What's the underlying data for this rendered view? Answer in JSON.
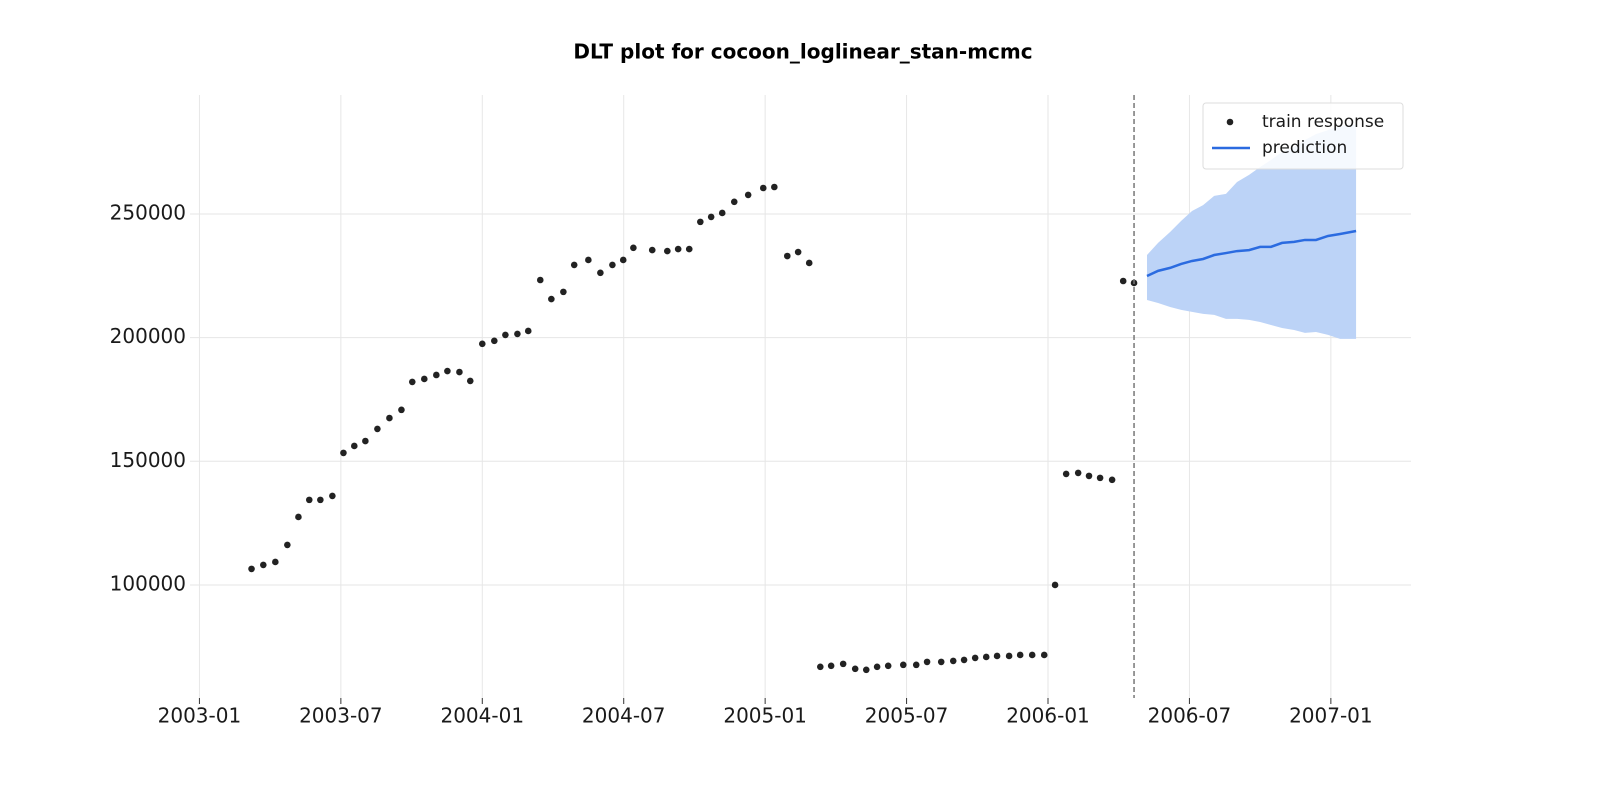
{
  "chart_data": {
    "type": "line",
    "title": "DLT plot for cocoon_loglinear_stan-mcmc",
    "xlim": [
      -0.4,
      51.4
    ],
    "ylim": [
      54300,
      298100
    ],
    "xticks": [
      {
        "value": 0,
        "label": "2003-01"
      },
      {
        "value": 6,
        "label": "2003-07"
      },
      {
        "value": 12,
        "label": "2004-01"
      },
      {
        "value": 18,
        "label": "2004-07"
      },
      {
        "value": 24,
        "label": "2005-01"
      },
      {
        "value": 30,
        "label": "2005-07"
      },
      {
        "value": 36,
        "label": "2006-01"
      },
      {
        "value": 42,
        "label": "2006-07"
      },
      {
        "value": 48,
        "label": "2007-01"
      }
    ],
    "yticks": [
      100000,
      150000,
      200000,
      250000
    ],
    "grid": true,
    "legend": "upper right",
    "vline_x": 39.65,
    "series": [
      {
        "name": "train response",
        "kind": "scatter",
        "color": "#222222",
        "x": [
          2.21,
          2.71,
          3.22,
          3.73,
          4.2,
          4.66,
          5.13,
          5.64,
          6.11,
          6.57,
          7.04,
          7.55,
          8.06,
          8.57,
          9.03,
          9.54,
          10.05,
          10.52,
          11.03,
          11.49,
          12.0,
          12.51,
          12.98,
          13.49,
          13.95,
          14.46,
          14.93,
          15.44,
          15.9,
          16.5,
          17.01,
          17.52,
          17.98,
          18.41,
          19.21,
          19.85,
          20.31,
          20.78,
          21.25,
          21.71,
          22.18,
          22.69,
          23.28,
          23.92,
          24.39,
          24.94,
          25.4,
          25.87,
          26.34,
          26.8,
          27.31,
          27.82,
          28.29,
          28.75,
          29.22,
          29.86,
          30.41,
          30.87,
          31.47,
          31.98,
          32.44,
          32.91,
          33.38,
          33.84,
          34.35,
          34.82,
          35.33,
          35.84,
          36.3,
          36.77,
          37.28,
          37.74,
          38.21,
          38.72,
          39.19,
          39.65
        ],
        "values": [
          106500,
          108100,
          109300,
          116200,
          127500,
          134400,
          134400,
          136000,
          153400,
          156200,
          158200,
          163100,
          167500,
          170800,
          182100,
          183300,
          184900,
          186500,
          186100,
          182500,
          197500,
          198700,
          201100,
          201500,
          202700,
          223300,
          215600,
          218500,
          229400,
          231400,
          226200,
          229400,
          231400,
          236300,
          235400,
          235000,
          235800,
          235800,
          246800,
          248800,
          250400,
          254900,
          257700,
          260500,
          260900,
          233000,
          234600,
          230200,
          66900,
          67300,
          68100,
          66100,
          65700,
          66900,
          67300,
          67700,
          67700,
          68900,
          68900,
          69300,
          69700,
          70500,
          70900,
          71300,
          71300,
          71700,
          71700,
          71700,
          100000,
          144900,
          145300,
          144100,
          143300,
          142500,
          222900,
          222100
        ]
      },
      {
        "name": "prediction",
        "kind": "line",
        "color": "#2b6be0",
        "band_color": "#bcd3f7",
        "x": [
          40.2,
          40.67,
          41.18,
          41.65,
          42.11,
          42.58,
          43.05,
          43.55,
          44.02,
          44.53,
          45.0,
          45.46,
          45.93,
          46.44,
          46.9,
          47.37,
          47.88,
          48.39,
          49.07
        ],
        "values": [
          224900,
          227000,
          228200,
          229800,
          231000,
          231800,
          233400,
          234200,
          235000,
          235400,
          236700,
          236700,
          238300,
          238700,
          239500,
          239500,
          241100,
          241900,
          243100
        ],
        "upper": [
          233400,
          238300,
          242700,
          247200,
          251200,
          253600,
          257300,
          258100,
          262900,
          265800,
          269000,
          271800,
          275100,
          277100,
          279900,
          282300,
          283900,
          285600,
          286000
        ],
        "lower": [
          215200,
          214000,
          212400,
          211200,
          210400,
          209600,
          209200,
          207600,
          207600,
          207200,
          206300,
          205100,
          203900,
          203100,
          201900,
          202300,
          201100,
          199500,
          199500
        ]
      }
    ]
  }
}
